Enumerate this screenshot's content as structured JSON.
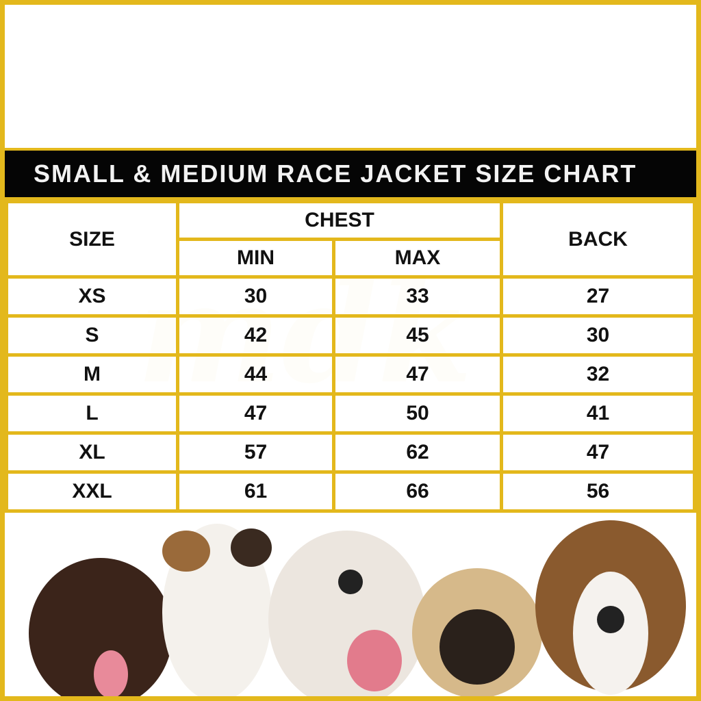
{
  "title": "SMALL & MEDIUM RACE JACKET SIZE CHART",
  "headers": {
    "size": "SIZE",
    "chest": "CHEST",
    "min": "MIN",
    "max": "MAX",
    "back": "BACK"
  },
  "rows": [
    {
      "size": "XS",
      "min": "30",
      "max": "33",
      "back": "27"
    },
    {
      "size": "S",
      "min": "42",
      "max": "45",
      "back": "30"
    },
    {
      "size": "M",
      "min": "44",
      "max": "47",
      "back": "32"
    },
    {
      "size": "L",
      "min": "47",
      "max": "50",
      "back": "41"
    },
    {
      "size": "XL",
      "min": "57",
      "max": "62",
      "back": "47"
    },
    {
      "size": "XXL",
      "min": "61",
      "max": "66",
      "back": "56"
    }
  ],
  "colors": {
    "border": "#e3b81c",
    "title_bg": "#050505"
  }
}
